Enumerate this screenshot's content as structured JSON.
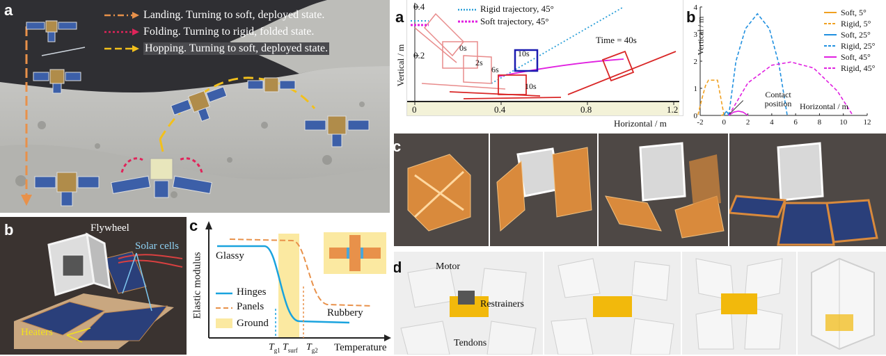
{
  "panel_a": {
    "label": "a",
    "legend": [
      {
        "text": "Landing. Turning to soft, deployed state.",
        "color": "#e8914a"
      },
      {
        "text": "Folding. Turning to rigid, folded state.",
        "color": "#e0245a"
      },
      {
        "text": "Hopping. Turning to soft, deployed state.",
        "color": "#f2c01c"
      }
    ]
  },
  "panel_b": {
    "label": "b",
    "annotations": {
      "flywheel": "Flywheel",
      "solar": "Solar cells",
      "heaters": "Heaters"
    }
  },
  "panel_c": {
    "label": "c",
    "ylabel": "Elastic modulus",
    "xlabel": "Temperature",
    "glassy": "Glassy",
    "rubbery": "Rubbery",
    "legend": [
      {
        "text": "Hinges",
        "color": "#1aa3de"
      },
      {
        "text": "Panels",
        "color": "#e8914a"
      },
      {
        "text": "Ground",
        "color": "#fbe9a1"
      }
    ],
    "ticks": [
      {
        "main": "T",
        "sub": "g1"
      },
      {
        "main": "T",
        "sub": "surf"
      },
      {
        "main": "T",
        "sub": "g2"
      }
    ]
  },
  "sim": {
    "label": "a",
    "ylabel": "Vertical / m",
    "xlabel": "Horizontal / m",
    "yticks": [
      "0.4",
      "0.2"
    ],
    "xticks": [
      "0",
      "0.4",
      "0.8",
      "1.2"
    ],
    "legend": [
      {
        "text": "Rigid trajectory, 45°",
        "color": "#2a9fd8"
      },
      {
        "text": "Soft trajectory, 45°",
        "color": "#e020e0"
      }
    ],
    "time_labels": [
      "0s",
      "2s",
      "6s",
      "10s",
      "10s"
    ],
    "time_note": "Time = 40s"
  },
  "chart_b": {
    "label": "b",
    "annotation": "Contact position"
  },
  "chart_data": {
    "type": "line",
    "title": "",
    "xlabel": "Horizontal / m",
    "ylabel": "Vertical / m",
    "xlim": [
      -2,
      12
    ],
    "ylim": [
      0,
      4
    ],
    "xticks": [
      "-2",
      "0",
      "2",
      "4",
      "6",
      "8",
      "10",
      "12"
    ],
    "yticks": [
      "0",
      "1",
      "2",
      "3",
      "4"
    ],
    "grid": false,
    "legend_position": "top-right",
    "series": [
      {
        "name": "Soft, 5°",
        "color": "#f0a020",
        "dash": "solid",
        "x": [
          0.0,
          -0.04,
          -0.09,
          -0.14,
          -0.18,
          -0.24
        ],
        "y": [
          0.0,
          0.015,
          0.022,
          0.018,
          0.008,
          0.0
        ]
      },
      {
        "name": "Rigid, 5°",
        "color": "#f0a020",
        "dash": "dashed",
        "x": [
          0.0,
          -0.55,
          -1.3,
          -1.55,
          -1.8,
          -2.0,
          -2.2
        ],
        "y": [
          0.0,
          1.3,
          1.3,
          1.1,
          0.7,
          0.35,
          0.0
        ]
      },
      {
        "name": "Soft, 25°",
        "color": "#2090e0",
        "dash": "solid",
        "x": [
          0.0,
          0.1,
          0.2,
          0.3,
          0.4
        ],
        "y": [
          0.0,
          0.1,
          0.14,
          0.1,
          0.0
        ]
      },
      {
        "name": "Rigid, 25°",
        "color": "#2090e0",
        "dash": "dashed",
        "x": [
          0.4,
          1.0,
          1.8,
          2.8,
          3.8,
          4.6,
          5.3
        ],
        "y": [
          0.0,
          2.0,
          3.2,
          3.75,
          3.2,
          1.9,
          0.0
        ]
      },
      {
        "name": "Soft, 45°",
        "color": "#e020e0",
        "dash": "solid",
        "x": [
          0.4,
          0.8,
          1.2,
          1.6,
          2.0
        ],
        "y": [
          0.0,
          0.12,
          0.16,
          0.12,
          0.0
        ]
      },
      {
        "name": "Rigid, 45°",
        "color": "#e020e0",
        "dash": "dashed",
        "x": [
          0.4,
          2.0,
          4.0,
          5.6,
          7.5,
          9.5,
          10.8
        ],
        "y": [
          0.0,
          1.2,
          1.85,
          1.97,
          1.75,
          0.9,
          0.0
        ]
      }
    ]
  },
  "photos_c": {
    "label": "c"
  },
  "photos_d": {
    "label": "d",
    "annotations": {
      "motor": "Motor",
      "restrainers": "Restrainers",
      "tendons": "Tendons"
    }
  }
}
